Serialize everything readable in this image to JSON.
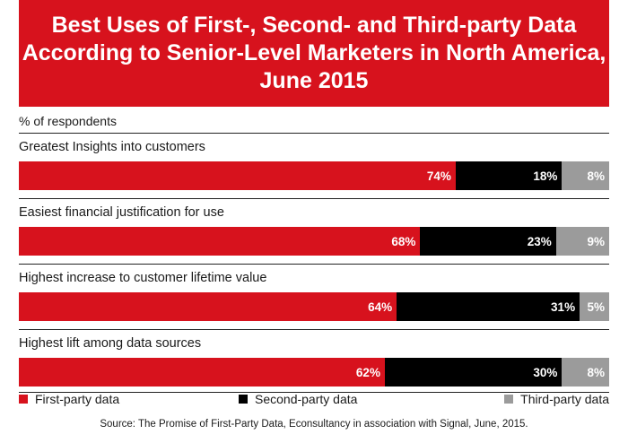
{
  "header": {
    "title_lines": [
      "Best Uses of First-, Second- and Third-party Data",
      "According to Senior-Level Marketers in North America,",
      "June 2015"
    ]
  },
  "subtitle": "% of respondents",
  "source": "Source: The Promise of First-Party Data, Econsultancy in association with Signal, June, 2015.",
  "colors": {
    "first": "#d7121d",
    "second": "#000000",
    "third": "#9b9b9b",
    "title_bg": "#d7121d"
  },
  "chart_data": {
    "type": "bar",
    "orientation": "horizontal",
    "stacked": true,
    "unit": "%",
    "categories": [
      "Greatest Insights into customers",
      "Easiest financial justification for use",
      "Highest increase to customer lifetime value",
      "Highest lift among data sources"
    ],
    "series": [
      {
        "name": "First-party data",
        "values": [
          74,
          68,
          64,
          62
        ]
      },
      {
        "name": "Second-party data",
        "values": [
          18,
          23,
          31,
          30
        ]
      },
      {
        "name": "Third-party data",
        "values": [
          8,
          9,
          5,
          8
        ]
      }
    ],
    "value_labels": [
      [
        "74%",
        "68%",
        "64%",
        "62%"
      ],
      [
        "18%",
        "23%",
        "31%",
        "30%"
      ],
      [
        "8%",
        "9%",
        "5%",
        "8%"
      ]
    ],
    "legend_position": "bottom",
    "grid": false
  }
}
